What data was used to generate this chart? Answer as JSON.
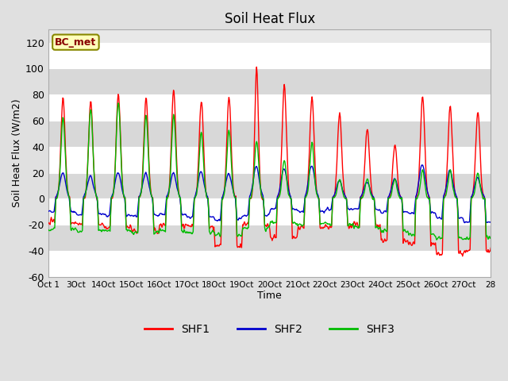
{
  "title": "Soil Heat Flux",
  "ylabel": "Soil Heat Flux (W/m2)",
  "xlabel": "Time",
  "annotation": "BC_met",
  "ylim": [
    -60,
    130
  ],
  "yticks": [
    -60,
    -40,
    -20,
    0,
    20,
    40,
    60,
    80,
    100,
    120
  ],
  "xtick_labels": [
    "Oct 1",
    "3Oct",
    "14Oct",
    "15Oct",
    "16Oct",
    "17Oct",
    "18Oct",
    "19Oct",
    "20Oct",
    "21Oct",
    "22Oct",
    "23Oct",
    "24Oct",
    "25Oct",
    "26Oct",
    "27Oct",
    "28"
  ],
  "line_colors": {
    "SHF1": "#ff0000",
    "SHF2": "#0000cd",
    "SHF3": "#00bb00"
  },
  "bg_color": "#e0e0e0",
  "plot_bg": "#e8e8e8",
  "linewidth": 1.0,
  "band_colors": [
    "#ffffff",
    "#d8d8d8"
  ]
}
